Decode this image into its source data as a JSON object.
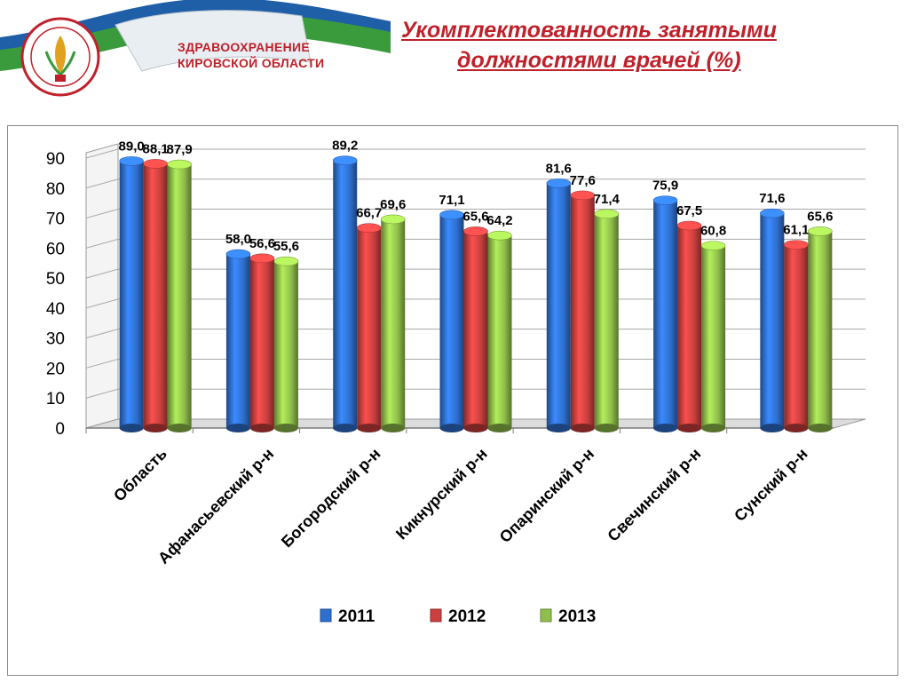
{
  "header": {
    "brand_line1": "ЗДРАВООХРАНЕНИЕ",
    "brand_line2": "КИРОВСКОЙ ОБЛАСТИ",
    "title_line1": "Укомплектованность занятыми",
    "title_line2": "должностями врачей (%)"
  },
  "colors": {
    "brand": "#c0202a",
    "ribbon_blue": "#1f5fa8",
    "ribbon_green": "#3a9b3c",
    "series_2011": "#2f6fcf",
    "series_2012": "#c9403e",
    "series_2013": "#8fbe4a"
  },
  "chart_data": {
    "type": "bar",
    "categories": [
      "Область",
      "Афанасьевский р-н",
      "Богородский р-н",
      "Кикнурский р-н",
      "Опаринский р-н",
      "Свечинский р-н",
      "Сунский р-н"
    ],
    "series": [
      {
        "name": "2011",
        "values": [
          89.0,
          58.0,
          89.2,
          71.1,
          81.6,
          75.9,
          71.6
        ],
        "labels": [
          "89,0",
          "58,0",
          "89,2",
          "71,1",
          "81,6",
          "75,9",
          "71,6"
        ]
      },
      {
        "name": "2012",
        "values": [
          88.1,
          56.6,
          66.7,
          65.6,
          77.6,
          67.5,
          61.1
        ],
        "labels": [
          "88,1",
          "56,6",
          "66,7",
          "65,6",
          "77,6",
          "67,5",
          "61,1"
        ]
      },
      {
        "name": "2013",
        "values": [
          87.9,
          55.6,
          69.6,
          64.2,
          71.4,
          60.8,
          65.6
        ],
        "labels": [
          "87,9",
          "55,6",
          "69,6",
          "64,2",
          "71,4",
          "60,8",
          "65,6"
        ]
      }
    ],
    "yticks": [
      "0",
      "10",
      "20",
      "30",
      "40",
      "50",
      "60",
      "70",
      "80",
      "90"
    ],
    "ylim": [
      0,
      90
    ],
    "grid": true,
    "legend_position": "bottom"
  }
}
